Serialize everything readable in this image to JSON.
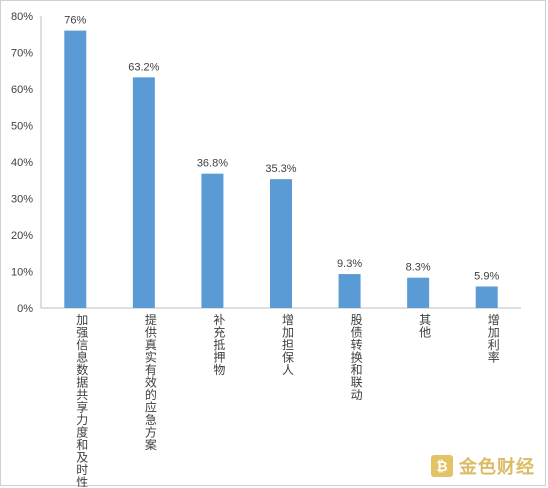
{
  "chart_data": {
    "type": "bar",
    "categories": [
      "加强信息数据共享力度和及时性",
      "提供真实有效的应急方案",
      "补充抵押物",
      "增加担保人",
      "股债转换和联动",
      "其他",
      "增加利率"
    ],
    "values": [
      76,
      63.2,
      36.8,
      35.3,
      9.3,
      8.3,
      5.9
    ],
    "data_labels": [
      "76%",
      "63.2%",
      "36.8%",
      "35.3%",
      "9.3%",
      "8.3%",
      "5.9%"
    ],
    "ylim": [
      0,
      80
    ],
    "yticks": [
      "0%",
      "10%",
      "20%",
      "30%",
      "40%",
      "50%",
      "60%",
      "70%",
      "80%"
    ],
    "bar_color": "#5b9bd5",
    "grid": false,
    "title": "",
    "xlabel": "",
    "ylabel": ""
  },
  "watermark": {
    "glyph": "₿",
    "text": "金色财经"
  }
}
